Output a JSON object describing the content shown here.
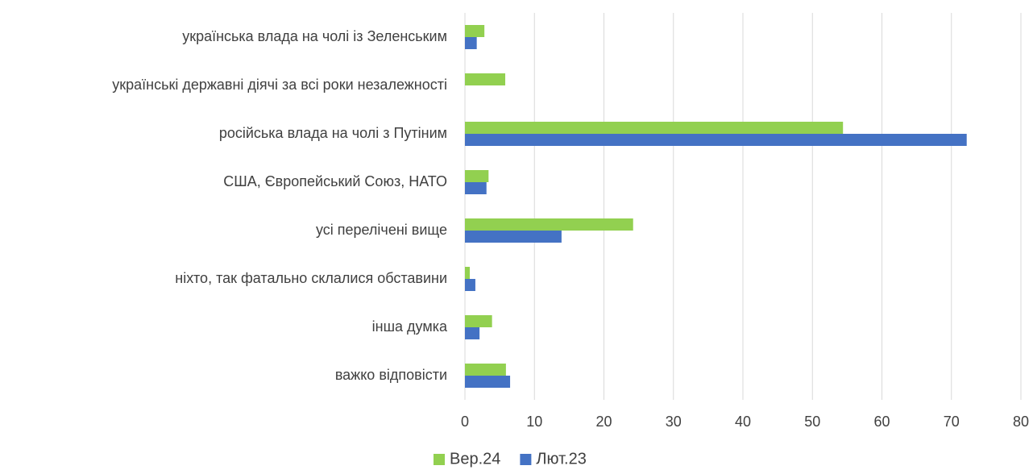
{
  "chart_data": {
    "type": "barh",
    "categories": [
      "українська влада на чолі із Зеленським",
      "українські державні діячі за всі роки незалежності",
      "російська влада на чолі з Путіним",
      "США, Європейський Союз, НАТО",
      "усі перелічені вище",
      "ніхто, так фатально склалися обставини",
      "інша думка",
      "важко відповісти"
    ],
    "series": [
      {
        "name": "Вер.24",
        "color": "#92d050",
        "values": [
          2.8,
          5.8,
          54.4,
          3.4,
          24.2,
          0.7,
          3.9,
          5.9
        ]
      },
      {
        "name": "Лют.23",
        "color": "#4472c4",
        "values": [
          1.7,
          null,
          72.2,
          3.1,
          13.9,
          1.5,
          2.1,
          6.5
        ]
      }
    ],
    "xlim": [
      0,
      80
    ],
    "xticks": [
      0,
      10,
      20,
      30,
      40,
      50,
      60,
      70,
      80
    ],
    "grid": true,
    "legend": "bottom"
  }
}
